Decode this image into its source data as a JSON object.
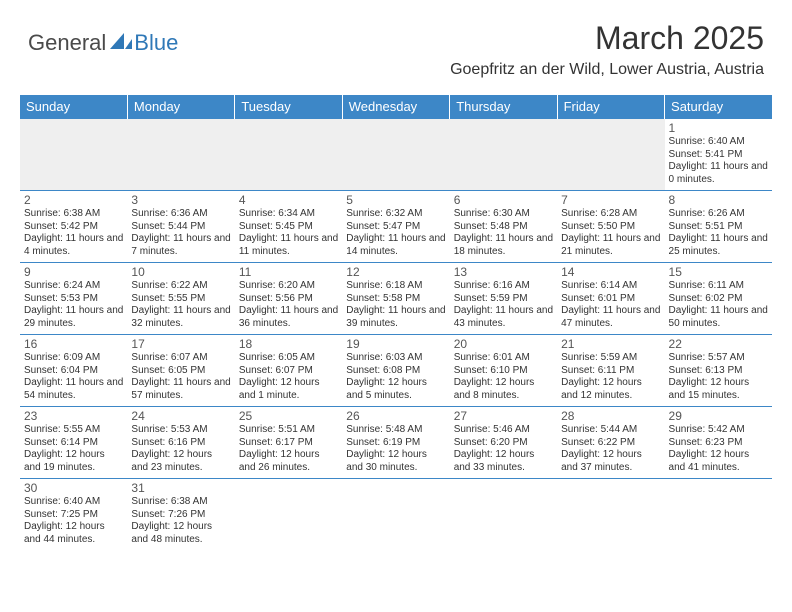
{
  "logo": {
    "text1": "General",
    "text2": "Blue"
  },
  "title": "March 2025",
  "location": "Goepfritz an der Wild, Lower Austria, Austria",
  "colors": {
    "header_bg": "#3d87c7",
    "header_text": "#ffffff",
    "border": "#3d87c7",
    "empty_bg": "#efefef",
    "text": "#333333",
    "logo_gray": "#4a4a4a",
    "logo_blue": "#2f78b7"
  },
  "weekdays": [
    "Sunday",
    "Monday",
    "Tuesday",
    "Wednesday",
    "Thursday",
    "Friday",
    "Saturday"
  ],
  "weeks": [
    [
      null,
      null,
      null,
      null,
      null,
      null,
      {
        "n": "1",
        "sr": "6:40 AM",
        "ss": "5:41 PM",
        "dl": "11 hours and 0 minutes."
      }
    ],
    [
      {
        "n": "2",
        "sr": "6:38 AM",
        "ss": "5:42 PM",
        "dl": "11 hours and 4 minutes."
      },
      {
        "n": "3",
        "sr": "6:36 AM",
        "ss": "5:44 PM",
        "dl": "11 hours and 7 minutes."
      },
      {
        "n": "4",
        "sr": "6:34 AM",
        "ss": "5:45 PM",
        "dl": "11 hours and 11 minutes."
      },
      {
        "n": "5",
        "sr": "6:32 AM",
        "ss": "5:47 PM",
        "dl": "11 hours and 14 minutes."
      },
      {
        "n": "6",
        "sr": "6:30 AM",
        "ss": "5:48 PM",
        "dl": "11 hours and 18 minutes."
      },
      {
        "n": "7",
        "sr": "6:28 AM",
        "ss": "5:50 PM",
        "dl": "11 hours and 21 minutes."
      },
      {
        "n": "8",
        "sr": "6:26 AM",
        "ss": "5:51 PM",
        "dl": "11 hours and 25 minutes."
      }
    ],
    [
      {
        "n": "9",
        "sr": "6:24 AM",
        "ss": "5:53 PM",
        "dl": "11 hours and 29 minutes."
      },
      {
        "n": "10",
        "sr": "6:22 AM",
        "ss": "5:55 PM",
        "dl": "11 hours and 32 minutes."
      },
      {
        "n": "11",
        "sr": "6:20 AM",
        "ss": "5:56 PM",
        "dl": "11 hours and 36 minutes."
      },
      {
        "n": "12",
        "sr": "6:18 AM",
        "ss": "5:58 PM",
        "dl": "11 hours and 39 minutes."
      },
      {
        "n": "13",
        "sr": "6:16 AM",
        "ss": "5:59 PM",
        "dl": "11 hours and 43 minutes."
      },
      {
        "n": "14",
        "sr": "6:14 AM",
        "ss": "6:01 PM",
        "dl": "11 hours and 47 minutes."
      },
      {
        "n": "15",
        "sr": "6:11 AM",
        "ss": "6:02 PM",
        "dl": "11 hours and 50 minutes."
      }
    ],
    [
      {
        "n": "16",
        "sr": "6:09 AM",
        "ss": "6:04 PM",
        "dl": "11 hours and 54 minutes."
      },
      {
        "n": "17",
        "sr": "6:07 AM",
        "ss": "6:05 PM",
        "dl": "11 hours and 57 minutes."
      },
      {
        "n": "18",
        "sr": "6:05 AM",
        "ss": "6:07 PM",
        "dl": "12 hours and 1 minute."
      },
      {
        "n": "19",
        "sr": "6:03 AM",
        "ss": "6:08 PM",
        "dl": "12 hours and 5 minutes."
      },
      {
        "n": "20",
        "sr": "6:01 AM",
        "ss": "6:10 PM",
        "dl": "12 hours and 8 minutes."
      },
      {
        "n": "21",
        "sr": "5:59 AM",
        "ss": "6:11 PM",
        "dl": "12 hours and 12 minutes."
      },
      {
        "n": "22",
        "sr": "5:57 AM",
        "ss": "6:13 PM",
        "dl": "12 hours and 15 minutes."
      }
    ],
    [
      {
        "n": "23",
        "sr": "5:55 AM",
        "ss": "6:14 PM",
        "dl": "12 hours and 19 minutes."
      },
      {
        "n": "24",
        "sr": "5:53 AM",
        "ss": "6:16 PM",
        "dl": "12 hours and 23 minutes."
      },
      {
        "n": "25",
        "sr": "5:51 AM",
        "ss": "6:17 PM",
        "dl": "12 hours and 26 minutes."
      },
      {
        "n": "26",
        "sr": "5:48 AM",
        "ss": "6:19 PM",
        "dl": "12 hours and 30 minutes."
      },
      {
        "n": "27",
        "sr": "5:46 AM",
        "ss": "6:20 PM",
        "dl": "12 hours and 33 minutes."
      },
      {
        "n": "28",
        "sr": "5:44 AM",
        "ss": "6:22 PM",
        "dl": "12 hours and 37 minutes."
      },
      {
        "n": "29",
        "sr": "5:42 AM",
        "ss": "6:23 PM",
        "dl": "12 hours and 41 minutes."
      }
    ],
    [
      {
        "n": "30",
        "sr": "6:40 AM",
        "ss": "7:25 PM",
        "dl": "12 hours and 44 minutes."
      },
      {
        "n": "31",
        "sr": "6:38 AM",
        "ss": "7:26 PM",
        "dl": "12 hours and 48 minutes."
      },
      null,
      null,
      null,
      null,
      null
    ]
  ],
  "labels": {
    "sunrise": "Sunrise:",
    "sunset": "Sunset:",
    "daylight": "Daylight:"
  }
}
